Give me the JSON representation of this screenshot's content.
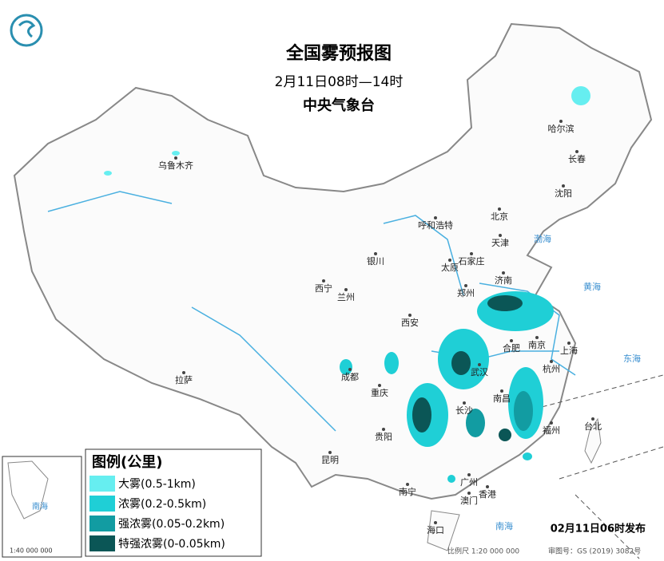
{
  "header": {
    "title": "全国雾预报图",
    "subtitle": "2月11日08时—14时",
    "issuer": "中央气象台"
  },
  "cities": [
    {
      "label": "乌鲁木齐"
    },
    {
      "label": "哈尔滨"
    },
    {
      "label": "长春"
    },
    {
      "label": "沈阳"
    },
    {
      "label": "呼和浩特"
    },
    {
      "label": "北京"
    },
    {
      "label": "天津"
    },
    {
      "label": "石家庄"
    },
    {
      "label": "太原"
    },
    {
      "label": "银川"
    },
    {
      "label": "济南"
    },
    {
      "label": "西宁"
    },
    {
      "label": "兰州"
    },
    {
      "label": "郑州"
    },
    {
      "label": "西安"
    },
    {
      "label": "合肥"
    },
    {
      "label": "南京"
    },
    {
      "label": "上海"
    },
    {
      "label": "武汉"
    },
    {
      "label": "杭州"
    },
    {
      "label": "成都"
    },
    {
      "label": "拉萨"
    },
    {
      "label": "重庆"
    },
    {
      "label": "长沙"
    },
    {
      "label": "南昌"
    },
    {
      "label": "福州"
    },
    {
      "label": "台北"
    },
    {
      "label": "贵阳"
    },
    {
      "label": "昆明"
    },
    {
      "label": "南宁"
    },
    {
      "label": "广州"
    },
    {
      "label": "澳门"
    },
    {
      "label": "香港"
    },
    {
      "label": "海口"
    }
  ],
  "seas": [
    {
      "label": "渤海"
    },
    {
      "label": "黄海"
    },
    {
      "label": "东海"
    },
    {
      "label": "南海"
    }
  ],
  "legend": {
    "title": "图例(公里)",
    "items": [
      {
        "label": "大雾(0.5-1km)",
        "color": "#66eef0"
      },
      {
        "label": "浓雾(0.2-0.5km)",
        "color": "#1fcfd6"
      },
      {
        "label": "强浓雾(0.05-0.2km)",
        "color": "#129ca2"
      },
      {
        "label": "特强浓雾(0-0.05km)",
        "color": "#0b5656"
      }
    ]
  },
  "inset": {
    "sea": "南海",
    "scale": "1:40 000 000"
  },
  "footer": {
    "issued": "02月11日06时发布",
    "scale": "比例尺 1:20 000 000",
    "approval": "审图号：GS (2019) 3082号"
  }
}
